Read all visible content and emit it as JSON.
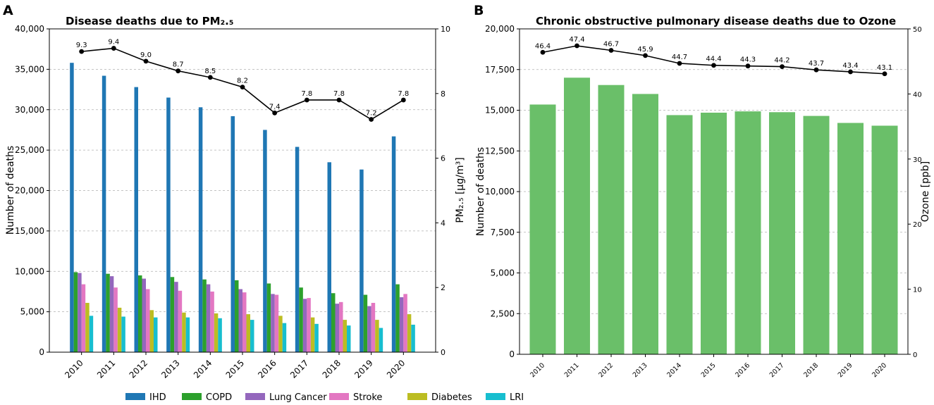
{
  "chart_data": [
    {
      "panel_label": "A",
      "type": "bar",
      "title": "Disease deaths due to PM₂.₅",
      "categories": [
        "2010",
        "2011",
        "2012",
        "2013",
        "2014",
        "2015",
        "2016",
        "2017",
        "2018",
        "2019",
        "2020"
      ],
      "series": [
        {
          "name": "IHD",
          "color": "#1f77b4",
          "values": [
            35800,
            34200,
            32800,
            31500,
            30300,
            29200,
            27500,
            25400,
            23500,
            22600,
            26700
          ]
        },
        {
          "name": "COPD",
          "color": "#2ca02c",
          "values": [
            9900,
            9700,
            9500,
            9300,
            9000,
            8900,
            8500,
            8000,
            7300,
            7100,
            8400
          ]
        },
        {
          "name": "Lung Cancer",
          "color": "#9467bd",
          "values": [
            9800,
            9400,
            9100,
            8700,
            8400,
            7800,
            7200,
            6600,
            6000,
            5700,
            6800
          ]
        },
        {
          "name": "Stroke",
          "color": "#e377c2",
          "values": [
            8400,
            8000,
            7800,
            7600,
            7500,
            7400,
            7100,
            6700,
            6200,
            6100,
            7200
          ]
        },
        {
          "name": "Diabetes",
          "color": "#bcbd22",
          "values": [
            6100,
            5500,
            5200,
            4900,
            4800,
            4700,
            4500,
            4300,
            4000,
            4000,
            4700
          ]
        },
        {
          "name": "LRI",
          "color": "#17becf",
          "values": [
            4500,
            4400,
            4300,
            4300,
            4200,
            4000,
            3600,
            3500,
            3300,
            3000,
            3400
          ]
        }
      ],
      "line": {
        "name": "PM₂.₅",
        "color": "#000000",
        "values": [
          9.3,
          9.4,
          9.0,
          8.7,
          8.5,
          8.2,
          7.4,
          7.8,
          7.8,
          7.2,
          7.8
        ],
        "labels": [
          "9.3",
          "9.4",
          "9.0",
          "8.7",
          "8.5",
          "8.2",
          "7.4",
          "7.8",
          "7.8",
          "7.2",
          "7.8"
        ]
      },
      "ylabel": "Number of deaths",
      "ylim": [
        0,
        40000
      ],
      "yticks": [
        0,
        5000,
        10000,
        15000,
        20000,
        25000,
        30000,
        35000,
        40000
      ],
      "ytick_labels": [
        "0",
        "5,000",
        "10,000",
        "15,000",
        "20,000",
        "25,000",
        "30,000",
        "35,000",
        "40,000"
      ],
      "y2label": "PM₂.₅ [μg/m³]",
      "y2lim": [
        0,
        10
      ],
      "y2ticks": [
        0,
        2,
        4,
        6,
        8,
        10
      ],
      "y2tick_labels": [
        "0",
        "2",
        "4",
        "6",
        "8",
        "10"
      ],
      "grid": "horizontal-dashed"
    },
    {
      "panel_label": "B",
      "type": "bar",
      "title": "Chronic obstructive pulmonary disease deaths due to Ozone",
      "categories": [
        "2010",
        "2011",
        "2012",
        "2013",
        "2014",
        "2015",
        "2016",
        "2017",
        "2018",
        "2019",
        "2020"
      ],
      "series": [
        {
          "name": "COPD deaths",
          "color": "#6abf69",
          "values": [
            15350,
            17000,
            16550,
            16000,
            14700,
            14850,
            14930,
            14880,
            14650,
            14220,
            14050
          ]
        }
      ],
      "line": {
        "name": "Ozone",
        "color": "#000000",
        "values": [
          46.4,
          47.4,
          46.7,
          45.9,
          44.7,
          44.4,
          44.3,
          44.2,
          43.7,
          43.4,
          43.1
        ],
        "labels": [
          "46.4",
          "47.4",
          "46.7",
          "45.9",
          "44.7",
          "44.4",
          "44.3",
          "44.2",
          "43.7",
          "43.4",
          "43.1"
        ]
      },
      "ylabel": "Number of deaths",
      "ylim": [
        0,
        20000
      ],
      "yticks": [
        0,
        2500,
        5000,
        7500,
        10000,
        12500,
        15000,
        17500,
        20000
      ],
      "ytick_labels": [
        "0",
        "2,500",
        "5,000",
        "7,500",
        "10,000",
        "12,500",
        "15,000",
        "17,500",
        "20,000"
      ],
      "y2label": "Ozone [ppb]",
      "y2lim": [
        0,
        50
      ],
      "y2ticks": [
        0,
        10,
        20,
        30,
        40,
        50
      ],
      "y2tick_labels": [
        "0",
        "10",
        "20",
        "30",
        "40",
        "50"
      ],
      "grid": "horizontal-dashed"
    }
  ],
  "legend": {
    "items": [
      {
        "label": "IHD",
        "color": "#1f77b4"
      },
      {
        "label": "COPD",
        "color": "#2ca02c"
      },
      {
        "label": "Lung Cancer",
        "color": "#9467bd"
      },
      {
        "label": "Stroke",
        "color": "#e377c2"
      },
      {
        "label": "Diabetes",
        "color": "#bcbd22"
      },
      {
        "label": "LRI",
        "color": "#17becf"
      }
    ],
    "placement": "bottom-center"
  }
}
